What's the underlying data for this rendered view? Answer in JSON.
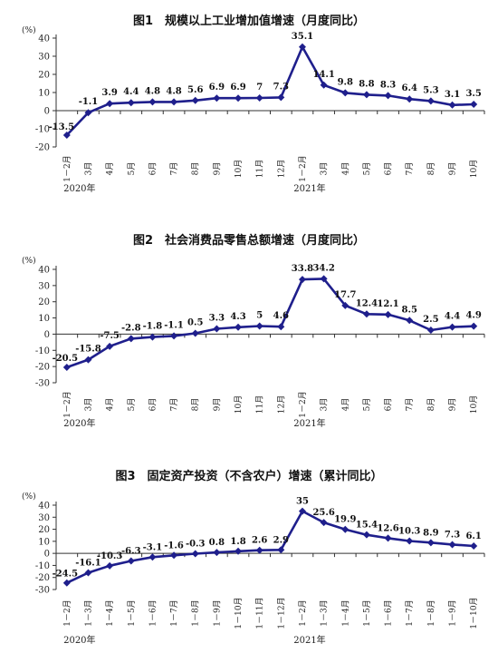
{
  "chart_data": [
    {
      "type": "line",
      "title": "图1　规模以上工业增加值增速（月度同比）",
      "unit": "(%)",
      "categories": [
        "1－2月",
        "3月",
        "4月",
        "5月",
        "6月",
        "7月",
        "8月",
        "9月",
        "10月",
        "11月",
        "12月",
        "1－2月",
        "3月",
        "4月",
        "5月",
        "6月",
        "7月",
        "8月",
        "9月",
        "10月"
      ],
      "year_labels": [
        "2020年",
        "2021年"
      ],
      "series": [
        {
          "values": [
            -13.5,
            -1.1,
            3.9,
            4.4,
            4.8,
            4.8,
            5.6,
            6.9,
            6.9,
            7.0,
            7.3,
            35.1,
            14.1,
            9.8,
            8.8,
            8.3,
            6.4,
            5.3,
            3.1,
            3.5
          ]
        }
      ],
      "ylim": [
        -20,
        40
      ],
      "yticks": [
        -20,
        -10,
        0,
        10,
        20,
        30,
        40
      ],
      "color": "#1f1f8c"
    },
    {
      "type": "line",
      "title": "图2　社会消费品零售总额增速（月度同比）",
      "unit": "(%)",
      "categories": [
        "1－2月",
        "3月",
        "4月",
        "5月",
        "6月",
        "7月",
        "8月",
        "9月",
        "10月",
        "11月",
        "12月",
        "1－2月",
        "3月",
        "4月",
        "5月",
        "6月",
        "7月",
        "8月",
        "9月",
        "10月"
      ],
      "year_labels": [
        "2020年",
        "2021年"
      ],
      "series": [
        {
          "values": [
            -20.5,
            -15.8,
            -7.5,
            -2.8,
            -1.8,
            -1.1,
            0.5,
            3.3,
            4.3,
            5.0,
            4.6,
            33.8,
            34.2,
            17.7,
            12.4,
            12.1,
            8.5,
            2.5,
            4.4,
            4.9
          ]
        }
      ],
      "ylim": [
        -30,
        40
      ],
      "yticks": [
        -30,
        -20,
        -10,
        0,
        10,
        20,
        30,
        40
      ],
      "color": "#1f1f8c"
    },
    {
      "type": "line",
      "title": "图3　固定资产投资（不含农户）增速（累计同比）",
      "unit": "(%)",
      "categories": [
        "1－2月",
        "1－3月",
        "1－4月",
        "1－5月",
        "1－6月",
        "1－7月",
        "1－8月",
        "1－9月",
        "1－10月",
        "1－11月",
        "1－12月",
        "1－2月",
        "1－3月",
        "1－4月",
        "1－5月",
        "1－6月",
        "1－7月",
        "1－8月",
        "1－9月",
        "1－10月"
      ],
      "year_labels": [
        "2020年",
        "2021年"
      ],
      "series": [
        {
          "values": [
            -24.5,
            -16.1,
            -10.3,
            -6.3,
            -3.1,
            -1.6,
            -0.3,
            0.8,
            1.8,
            2.6,
            2.9,
            35.0,
            25.6,
            19.9,
            15.4,
            12.6,
            10.3,
            8.9,
            7.3,
            6.1
          ]
        }
      ],
      "ylim": [
        -30,
        40
      ],
      "yticks": [
        -30,
        -20,
        -10,
        0,
        10,
        20,
        30,
        40
      ],
      "color": "#1f1f8c"
    }
  ]
}
